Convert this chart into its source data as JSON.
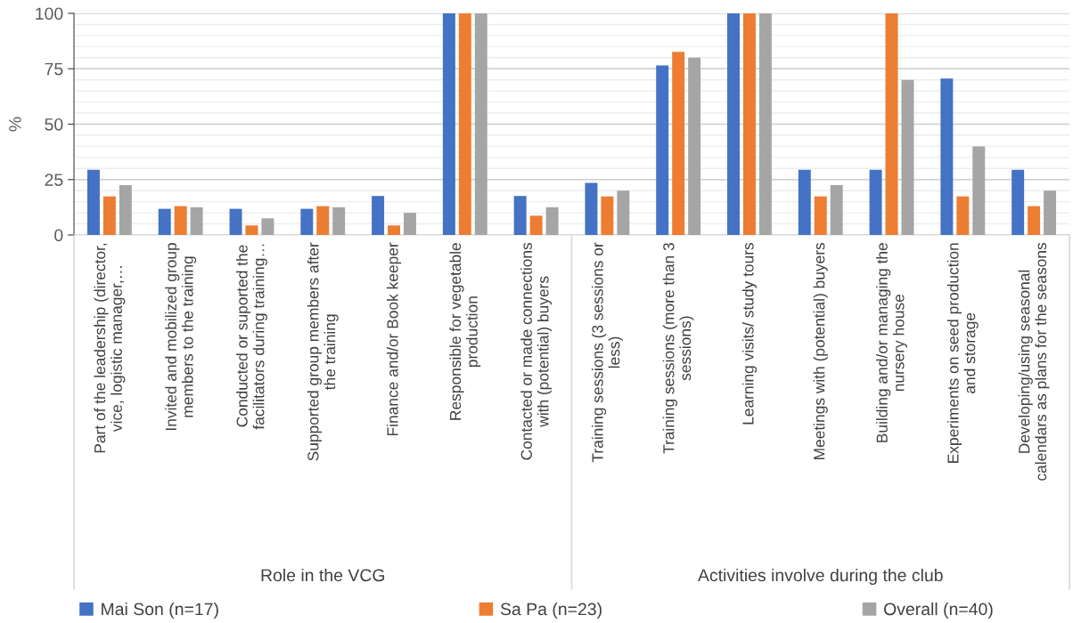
{
  "chart_data": {
    "type": "bar",
    "ylabel": "%",
    "categories": [
      "Part of the leadership (director,\nvice, logistic manager,…",
      "Invited and mobilized group\nmembers to the training",
      "Conducted or suported the\nfacilitators during training…",
      "Supported group members after\nthe training",
      "Finance and/or Book keeper",
      "Responsible for vegetable\nproduction",
      "Contacted or made connections\nwith (potential) buyers",
      "Training sessions (3 sessions or\nless)",
      "Training sessions (more than 3\nsessions)",
      "Learning visits/ study tours",
      "Meetings with (potential) buyers",
      "Building and/or managing the\nnursery house",
      "Experiments on seed production\nand storage",
      "Developing/using seasonal\ncalendars as plans for the seasons"
    ],
    "series": [
      {
        "name": "Mai Son (n=17)",
        "color": "#4472c4",
        "values": [
          29.4,
          11.8,
          11.8,
          11.8,
          17.6,
          100,
          17.6,
          23.5,
          76.5,
          100,
          29.4,
          29.4,
          70.6,
          29.4
        ]
      },
      {
        "name": "Sa Pa (n=23)",
        "color": "#ed7d31",
        "values": [
          17.4,
          13.0,
          4.3,
          13.0,
          4.3,
          100,
          8.7,
          17.4,
          82.6,
          100,
          17.4,
          100,
          17.4,
          13.0
        ]
      },
      {
        "name": "Overall (n=40)",
        "color": "#a5a5a5",
        "values": [
          22.5,
          12.5,
          7.5,
          12.5,
          10,
          100,
          12.5,
          20,
          80,
          100,
          22.5,
          70,
          40,
          20
        ]
      }
    ],
    "annotations": [
      "Role in the VCG",
      "Activities involve during the club"
    ],
    "ylim": [
      0,
      100
    ],
    "yticks": [
      0,
      25,
      50,
      75,
      100
    ],
    "grid": "y",
    "legend": "bottom"
  }
}
